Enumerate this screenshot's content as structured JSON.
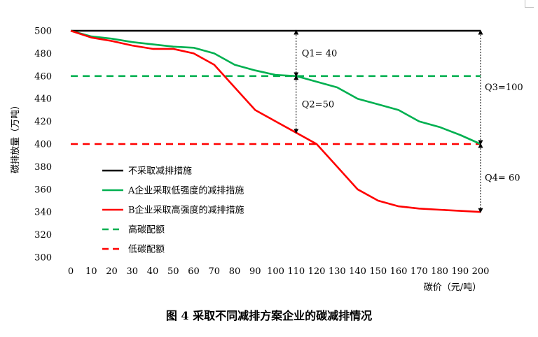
{
  "caption": "图 4 采取不同减排方案企业的碳减排情况",
  "chart_data": {
    "type": "line",
    "ylabel": "碳排放量（万吨）",
    "xlabel": "碳价（元/吨）",
    "ylim": [
      300,
      500
    ],
    "yticks": [
      300,
      320,
      340,
      360,
      380,
      400,
      420,
      440,
      460,
      480,
      500
    ],
    "x": [
      0,
      10,
      20,
      30,
      40,
      50,
      60,
      70,
      80,
      90,
      100,
      110,
      120,
      130,
      140,
      150,
      160,
      170,
      180,
      190,
      200
    ],
    "grid": false,
    "legend_position": "bottom-left",
    "series": [
      {
        "name": "不采取减排措施",
        "color": "#000000",
        "dash": false,
        "values": [
          500,
          500,
          500,
          500,
          500,
          500,
          500,
          500,
          500,
          500,
          500,
          500,
          500,
          500,
          500,
          500,
          500,
          500,
          500,
          500,
          500
        ]
      },
      {
        "name": "A企业采取低强度的减排措施",
        "color": "#00b050",
        "dash": false,
        "values": [
          500,
          495,
          493,
          490,
          488,
          486,
          485,
          480,
          470,
          465,
          461,
          460,
          455,
          450,
          440,
          435,
          430,
          420,
          415,
          408,
          400
        ]
      },
      {
        "name": "B企业采取高强度的减排措施",
        "color": "#ff0000",
        "dash": false,
        "values": [
          500,
          494,
          491,
          487,
          484,
          484,
          480,
          470,
          450,
          430,
          420,
          410,
          400,
          380,
          360,
          350,
          345,
          343,
          342,
          341,
          340
        ]
      },
      {
        "name": "高碳配额",
        "color": "#00b050",
        "dash": true,
        "values": [
          460,
          460,
          460,
          460,
          460,
          460,
          460,
          460,
          460,
          460,
          460,
          460,
          460,
          460,
          460,
          460,
          460,
          460,
          460,
          460,
          460
        ]
      },
      {
        "name": "低碳配额",
        "color": "#ff0000",
        "dash": true,
        "values": [
          400,
          400,
          400,
          400,
          400,
          400,
          400,
          400,
          400,
          400,
          400,
          400,
          400,
          400,
          400,
          400,
          400,
          400,
          400,
          400,
          400
        ]
      }
    ],
    "annotations": [
      {
        "label": "Q1= 40",
        "x": 110,
        "y_from": 500,
        "y_to": 460
      },
      {
        "label": "Q2=50",
        "x": 110,
        "y_from": 460,
        "y_to": 410
      },
      {
        "label": "Q3=100",
        "x": 200,
        "y_from": 500,
        "y_to": 400
      },
      {
        "label": "Q4= 60",
        "x": 200,
        "y_from": 400,
        "y_to": 340
      }
    ]
  }
}
